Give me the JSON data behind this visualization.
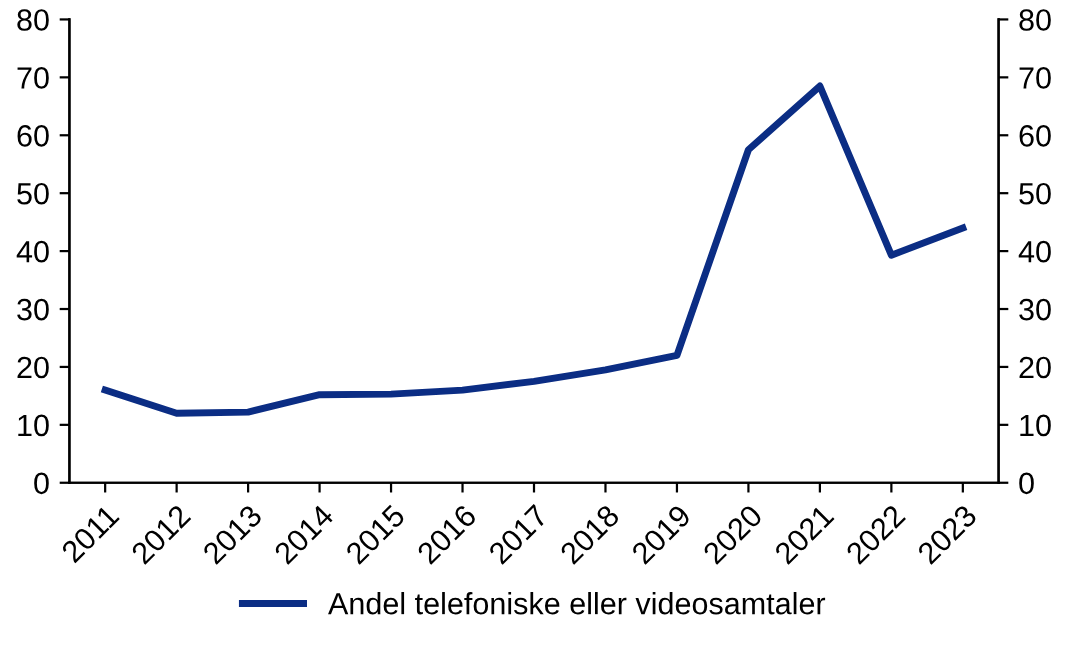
{
  "chart_data": {
    "type": "line",
    "categories": [
      "2011",
      "2012",
      "2013",
      "2014",
      "2015",
      "2016",
      "2017",
      "2018",
      "2019",
      "2020",
      "2021",
      "2022",
      "2023"
    ],
    "series": [
      {
        "name": "Andel telefoniske eller videosamtaler",
        "color": "#0b2d84",
        "values": [
          16,
          12,
          12.2,
          15.2,
          15.3,
          16,
          17.5,
          19.5,
          22,
          57.5,
          68.5,
          39.3,
          44
        ]
      }
    ],
    "ylim": [
      0,
      80
    ],
    "yticks": [
      0,
      10,
      20,
      30,
      40,
      50,
      60,
      70,
      80
    ],
    "y2lim": [
      0,
      80
    ],
    "y2ticks": [
      0,
      10,
      20,
      30,
      40,
      50,
      60,
      70,
      80
    ],
    "grid": false,
    "legend": "bottom",
    "marker": "none",
    "line_style": "solid"
  }
}
